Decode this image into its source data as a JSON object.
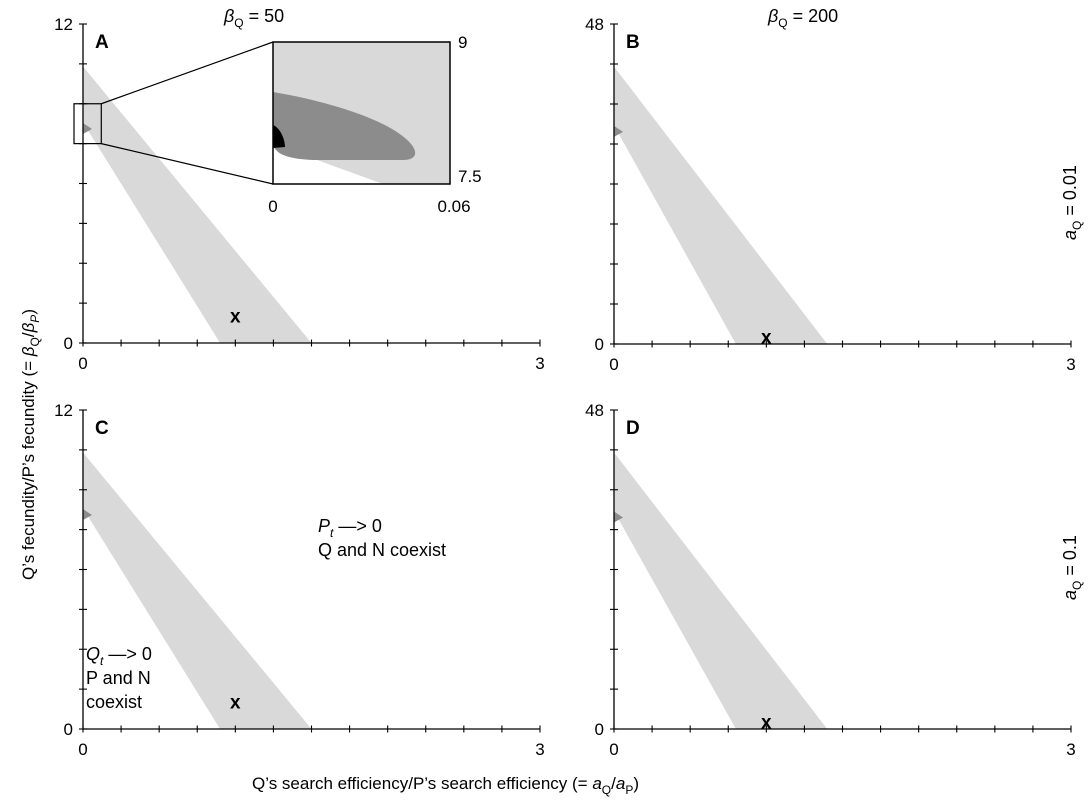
{
  "header": {
    "beta_left": {
      "sym": "β",
      "sub": "Q",
      "rest": " = 50"
    },
    "beta_right": {
      "sym": "β",
      "sub": "Q",
      "rest": " = 200"
    }
  },
  "side": {
    "top": {
      "sym": "a",
      "sub": "Q",
      "rest": " = 0.01"
    },
    "bottom": {
      "sym": "a",
      "sub": "Q",
      "rest": " = 0.1"
    }
  },
  "axis_titles": {
    "y": {
      "pre": "Q’s fecundity/P’s fecundity (= ",
      "s1": "β",
      "s1sub": "Q",
      "mid": "/",
      "s2": "β",
      "s2sub": "P",
      "post": ")"
    },
    "x": {
      "pre": "Q’s search efficiency/P’s search efficiency (= ",
      "s1": "a",
      "s1sub": "Q",
      "mid": "/",
      "s2": "a",
      "s2sub": "P",
      "post": ")"
    }
  },
  "annotations": {
    "pt_sym": "P",
    "pt_sub": "t",
    "pt_arrow": " —> 0",
    "pt_line2": "Q  and N coexist",
    "qt_sym": "Q",
    "qt_sub": "t",
    "qt_arrow": " —> 0",
    "qt_line2": "P and N",
    "qt_line3": "coexist"
  },
  "colors": {
    "light_region": "#d9d9d9",
    "mid_region": "#8c8c8c",
    "dark_region": "#000000",
    "axis": "#000000"
  },
  "chart_data": [
    {
      "type": "area",
      "panel": "A",
      "xlim": [
        0,
        3
      ],
      "ylim": [
        0,
        12
      ],
      "x_tick_labels": [
        "0",
        "3"
      ],
      "y_tick_labels": [
        "0",
        "12"
      ],
      "coexistence_band": {
        "upper_line": [
          [
            0,
            10.4
          ],
          [
            1.5,
            0
          ]
        ],
        "lower_line": [
          [
            0,
            8.3
          ],
          [
            0.9,
            0
          ]
        ]
      },
      "marker": {
        "label": "x",
        "x": 1.0,
        "y": 1.0
      },
      "inset": {
        "xlim": [
          0,
          0.06
        ],
        "ylim": [
          7.5,
          9
        ],
        "x_tick_labels": [
          "0",
          "0.06"
        ],
        "y_tick_labels": [
          "7.5",
          "9"
        ],
        "source_box": {
          "x": [
            0,
            0.12
          ],
          "y": [
            7.5,
            9
          ]
        }
      }
    },
    {
      "type": "area",
      "panel": "B",
      "xlim": [
        0,
        3
      ],
      "ylim": [
        0,
        48
      ],
      "x_tick_labels": [
        "0",
        "3"
      ],
      "y_tick_labels": [
        "0",
        "48"
      ],
      "coexistence_band": {
        "upper_line": [
          [
            0,
            41.6
          ],
          [
            1.4,
            0
          ]
        ],
        "lower_line": [
          [
            0,
            32.8
          ],
          [
            0.8,
            0
          ]
        ]
      },
      "marker": {
        "label": "x",
        "x": 1.0,
        "y": 1.0
      }
    },
    {
      "type": "area",
      "panel": "C",
      "xlim": [
        0,
        3
      ],
      "ylim": [
        0,
        12
      ],
      "x_tick_labels": [
        "0",
        "3"
      ],
      "y_tick_labels": [
        "0",
        "12"
      ],
      "coexistence_band": {
        "upper_line": [
          [
            0,
            10.4
          ],
          [
            1.5,
            0
          ]
        ],
        "lower_line": [
          [
            0,
            8.3
          ],
          [
            0.9,
            0
          ]
        ]
      },
      "marker": {
        "label": "x",
        "x": 1.0,
        "y": 1.0
      }
    },
    {
      "type": "area",
      "panel": "D",
      "xlim": [
        0,
        3
      ],
      "ylim": [
        0,
        48
      ],
      "x_tick_labels": [
        "0",
        "3"
      ],
      "y_tick_labels": [
        "0",
        "48"
      ],
      "coexistence_band": {
        "upper_line": [
          [
            0,
            41.6
          ],
          [
            1.4,
            0
          ]
        ],
        "lower_line": [
          [
            0,
            32.8
          ],
          [
            0.8,
            0
          ]
        ]
      },
      "marker": {
        "label": "x",
        "x": 1.0,
        "y": 1.0
      }
    }
  ]
}
